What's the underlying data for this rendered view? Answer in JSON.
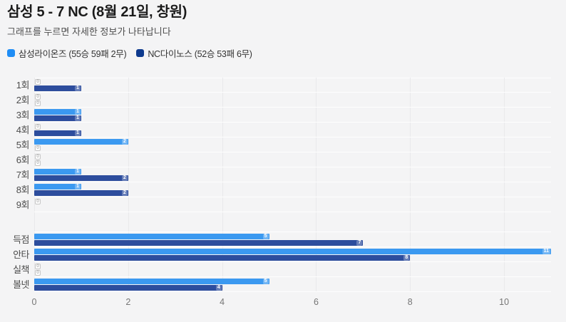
{
  "header": {
    "title": "삼성 5 - 7 NC (8월 21일, 창원)",
    "subtitle": "그래프를 누르면 자세한 정보가 나타납니다"
  },
  "legend": [
    {
      "label": "삼성라이온즈 (55승 59패 2무)",
      "color": "#1f8df5"
    },
    {
      "label": "NC다이노스 (52승 53패 6무)",
      "color": "#0e3a8e"
    }
  ],
  "colors": {
    "background": "#f4f4f5",
    "samsung_bar": "#3b99f0",
    "nc_bar": "#2d4d9d"
  },
  "chart_data": {
    "type": "bar",
    "orientation": "horizontal",
    "title": "삼성 5 - 7 NC (8월 21일, 창원)",
    "series": [
      {
        "name": "삼성라이온즈",
        "color": "#3b99f0"
      },
      {
        "name": "NC다이노스",
        "color": "#2d4d9d"
      }
    ],
    "rows": [
      {
        "section": "innings",
        "category": "1회",
        "values": [
          0,
          1
        ]
      },
      {
        "section": "innings",
        "category": "2회",
        "values": [
          0,
          0
        ]
      },
      {
        "section": "innings",
        "category": "3회",
        "values": [
          1,
          1
        ]
      },
      {
        "section": "innings",
        "category": "4회",
        "values": [
          0,
          1
        ]
      },
      {
        "section": "innings",
        "category": "5회",
        "values": [
          2,
          0
        ]
      },
      {
        "section": "innings",
        "category": "6회",
        "values": [
          0,
          0
        ]
      },
      {
        "section": "innings",
        "category": "7회",
        "values": [
          1,
          2
        ]
      },
      {
        "section": "innings",
        "category": "8회",
        "values": [
          1,
          2
        ]
      },
      {
        "section": "innings",
        "category": "9회",
        "values": [
          0,
          null
        ]
      },
      {
        "section": "totals",
        "category": "득점",
        "values": [
          5,
          7
        ]
      },
      {
        "section": "totals",
        "category": "안타",
        "values": [
          11,
          8
        ]
      },
      {
        "section": "totals",
        "category": "실책",
        "values": [
          0,
          0
        ]
      },
      {
        "section": "totals",
        "category": "볼넷",
        "values": [
          5,
          4
        ]
      }
    ],
    "xticks": [
      0,
      2,
      4,
      6,
      8,
      10
    ],
    "xlim": [
      0,
      11
    ],
    "grid": true,
    "legend_position": "top"
  }
}
